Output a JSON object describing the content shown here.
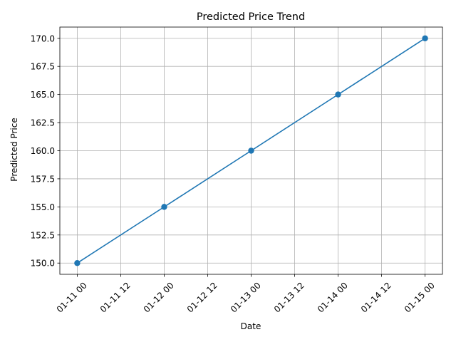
{
  "chart_data": {
    "type": "line",
    "title": "Predicted Price Trend",
    "xlabel": "Date",
    "ylabel": "Predicted Price",
    "grid": true,
    "x_hours": [
      0,
      24,
      48,
      72,
      96
    ],
    "x_labels": [
      "01-11 00",
      "01-12 00",
      "01-13 00",
      "01-14 00",
      "01-15 00"
    ],
    "series": [
      {
        "name": "Predicted Price",
        "values": [
          150.0,
          155.0,
          160.0,
          165.0,
          170.0
        ],
        "color": "#1f77b4",
        "marker": "circle"
      }
    ],
    "xlim": [
      -4.8,
      100.8
    ],
    "ylim": [
      149.0,
      171.0
    ],
    "xticks": [
      {
        "value": 0,
        "label": "01-11 00"
      },
      {
        "value": 12,
        "label": "01-11 12"
      },
      {
        "value": 24,
        "label": "01-12 00"
      },
      {
        "value": 36,
        "label": "01-12 12"
      },
      {
        "value": 48,
        "label": "01-13 00"
      },
      {
        "value": 60,
        "label": "01-13 12"
      },
      {
        "value": 72,
        "label": "01-14 00"
      },
      {
        "value": 84,
        "label": "01-14 12"
      },
      {
        "value": 96,
        "label": "01-15 00"
      }
    ],
    "yticks": [
      {
        "value": 150.0,
        "label": "150.0"
      },
      {
        "value": 152.5,
        "label": "152.5"
      },
      {
        "value": 155.0,
        "label": "155.0"
      },
      {
        "value": 157.5,
        "label": "157.5"
      },
      {
        "value": 160.0,
        "label": "160.0"
      },
      {
        "value": 162.5,
        "label": "162.5"
      },
      {
        "value": 165.0,
        "label": "165.0"
      },
      {
        "value": 167.5,
        "label": "167.5"
      },
      {
        "value": 170.0,
        "label": "170.0"
      }
    ]
  }
}
